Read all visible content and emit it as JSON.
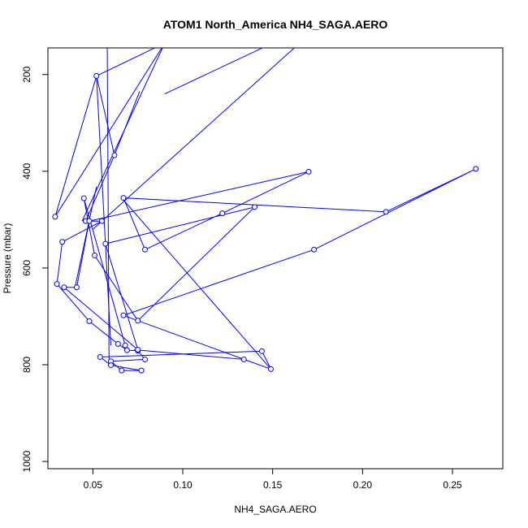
{
  "chart_data": {
    "type": "line",
    "title": "ATOM1 North_America NH4_SAGA.AERO",
    "xlabel": "NH4_SAGA.AERO",
    "ylabel": "Pressure (mbar)",
    "xlim": [
      0.025,
      0.278
    ],
    "ylim": [
      1015,
      145
    ],
    "y_reversed": true,
    "grid": false,
    "legend": "none",
    "series_color": "#0000ff",
    "xticks": [
      0.05,
      0.1,
      0.15,
      0.2,
      0.25
    ],
    "xtick_labels": [
      "0.05",
      "0.10",
      "0.15",
      "0.20",
      "0.25"
    ],
    "yticks": [
      200,
      400,
      600,
      800,
      1000
    ],
    "ytick_labels": [
      "200",
      "400",
      "600",
      "800",
      "1000"
    ],
    "series": [
      {
        "x": [
          0.029,
          0.052,
          0.062,
          0.046,
          0.055,
          0.033,
          0.03,
          0.048,
          0.064,
          0.069,
          0.075,
          0.079,
          0.06,
          0.066,
          0.077,
          0.06,
          0.054,
          0.144,
          0.149,
          0.134,
          0.067,
          0.173,
          0.263,
          0.213,
          0.067,
          0.079,
          0.122,
          0.17,
          0.048,
          0.041,
          0.034,
          0.075,
          0.057,
          0.14,
          0.075,
          0.051,
          0.045,
          0.068
        ],
        "y": [
          494,
          203,
          367,
          503,
          503,
          546,
          633,
          710,
          757,
          770,
          771,
          789,
          793,
          812,
          812,
          801,
          784,
          772,
          809,
          789,
          698,
          562,
          395,
          484,
          455,
          562,
          487,
          401,
          503,
          640,
          640,
          769,
          550,
          474,
          709,
          574,
          456,
          760
        ],
        "segments": [
          [
            0.029,
            494,
            0.09,
            135
          ],
          [
            0.052,
            203,
            0.09,
            135
          ],
          [
            0.044,
            503,
            0.09,
            135
          ],
          [
            0.052,
            203,
            0.06,
            760
          ],
          [
            0.062,
            367,
            0.076,
            235
          ],
          [
            0.059,
            796,
            0.058,
            135
          ],
          [
            0.052,
            432,
            0.04,
            641
          ],
          [
            0.15,
            135,
            0.09,
            240
          ],
          [
            0.165,
            135,
            0.05,
            520
          ],
          [
            0.066,
            455,
            0.149,
            809
          ],
          [
            0.073,
            769,
            0.134,
            789
          ]
        ]
      }
    ]
  }
}
